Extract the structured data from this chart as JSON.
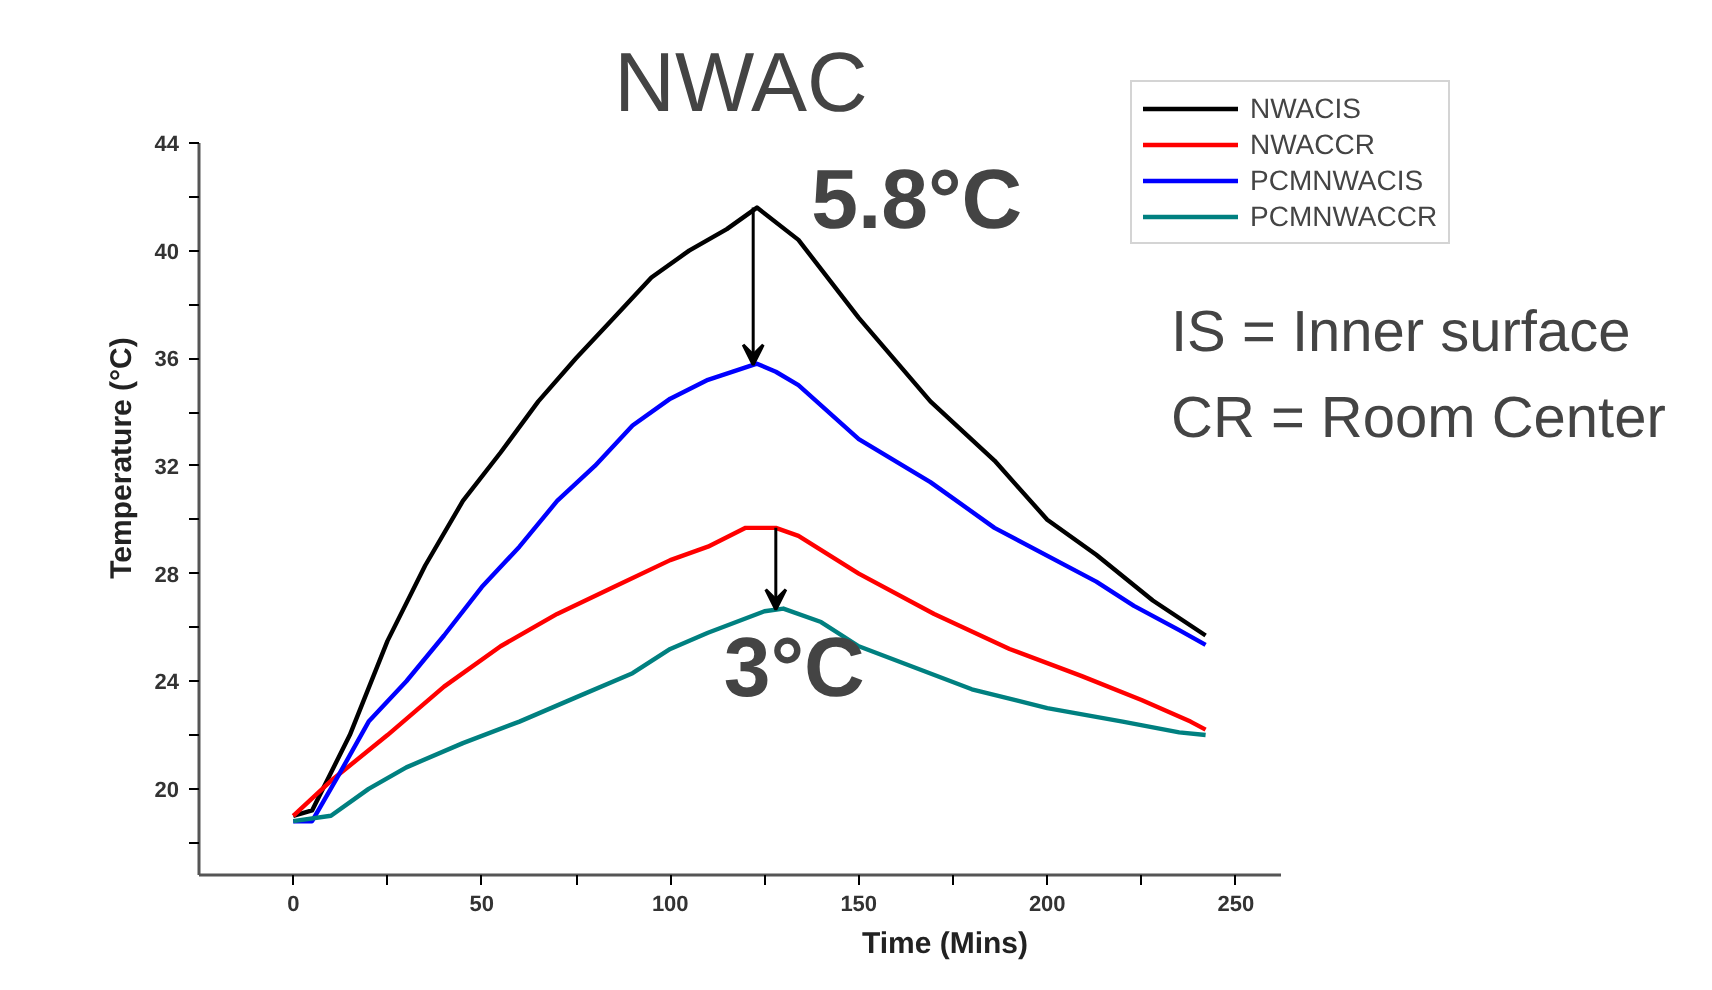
{
  "chart_data": {
    "type": "line",
    "title": "NWAC",
    "xlabel": "Time (Mins)",
    "ylabel": "Temperature (°C)",
    "xlim": [
      -25,
      262
    ],
    "ylim": [
      16.8,
      44
    ],
    "xticks": [
      0,
      {
        "value": 25,
        "label": null
      },
      50,
      {
        "value": 75,
        "label": null
      },
      100,
      {
        "value": 125,
        "label": null
      },
      150,
      {
        "value": 175,
        "label": null
      },
      200,
      {
        "value": 225,
        "label": null
      },
      250
    ],
    "yticks": [
      {
        "value": 18,
        "label": null
      },
      20,
      {
        "value": 22,
        "label": null
      },
      24,
      {
        "value": 26,
        "label": null
      },
      28,
      {
        "value": 30,
        "label": null
      },
      32,
      {
        "value": 34,
        "label": null
      },
      36,
      {
        "value": 38,
        "label": null
      },
      40,
      {
        "value": 42,
        "label": null
      },
      44
    ],
    "grid": false,
    "legend": "top right",
    "marker": "none",
    "line_style": "solid",
    "series": [
      {
        "name": "NWACIS",
        "color": "#000000",
        "x": [
          0,
          5,
          15,
          25,
          35,
          45,
          55,
          65,
          75,
          85,
          95,
          105,
          115,
          123,
          134,
          150,
          169,
          186,
          200,
          213,
          228,
          242
        ],
        "values": [
          19,
          19.2,
          22,
          25.5,
          28.3,
          30.7,
          32.5,
          34.4,
          36,
          37.5,
          39,
          40,
          40.8,
          41.6,
          40.4,
          37.5,
          34.4,
          32.2,
          30,
          28.7,
          27,
          25.7
        ]
      },
      {
        "name": "NWACCR",
        "color": "#ff0000",
        "x": [
          0,
          10,
          25,
          40,
          55,
          70,
          85,
          100,
          110,
          120,
          128,
          134,
          150,
          170,
          190,
          209,
          225,
          238,
          242
        ],
        "values": [
          19,
          20.3,
          22,
          23.8,
          25.3,
          26.5,
          27.5,
          28.5,
          29,
          29.7,
          29.7,
          29.4,
          28,
          26.5,
          25.2,
          24.2,
          23.3,
          22.5,
          22.2
        ]
      },
      {
        "name": "PCMNWACIS",
        "color": "#0000ff",
        "x": [
          0,
          5,
          12,
          20,
          30,
          40,
          50,
          60,
          70,
          80,
          90,
          100,
          110,
          123,
          128,
          134,
          150,
          169,
          186,
          213,
          223,
          235,
          242
        ],
        "values": [
          18.8,
          18.8,
          20.5,
          22.5,
          24,
          25.7,
          27.5,
          29,
          30.7,
          32,
          33.5,
          34.5,
          35.2,
          35.8,
          35.5,
          35,
          33,
          31.4,
          29.7,
          27.7,
          26.8,
          25.9,
          25.35
        ]
      },
      {
        "name": "PCMNWACCR",
        "color": "#008080",
        "x": [
          0,
          10,
          20,
          30,
          45,
          60,
          75,
          90,
          100,
          110,
          125,
          130,
          140,
          150,
          165,
          180,
          200,
          220,
          235,
          242
        ],
        "values": [
          18.8,
          19,
          20,
          20.8,
          21.7,
          22.5,
          23.4,
          24.3,
          25.2,
          25.8,
          26.6,
          26.7,
          26.2,
          25.3,
          24.5,
          23.7,
          23,
          22.5,
          22.1,
          22
        ]
      }
    ],
    "annotations": [
      {
        "text": "5.8°C",
        "x": 122,
        "y": 41.6
      },
      {
        "text": "3°C",
        "x": 128,
        "y": 29.7
      },
      "IS = Inner surface",
      "CR = Room Center"
    ]
  }
}
